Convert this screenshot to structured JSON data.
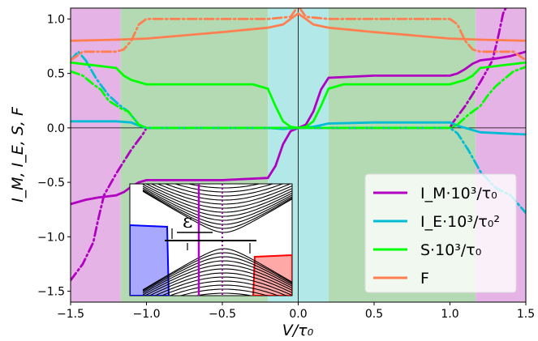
{
  "chart_data": {
    "type": "line",
    "xlabel": "V/τ₀",
    "ylabel": "I_M, I_E, S, F",
    "xlim": [
      -1.5,
      1.5
    ],
    "ylim": [
      -1.6,
      1.1
    ],
    "xticks": [
      -1.5,
      -1.0,
      -0.5,
      0.0,
      0.5,
      1.0,
      1.5
    ],
    "xtick_labels": [
      "−1.5",
      "−1.0",
      "−0.5",
      "0.0",
      "0.5",
      "1.0",
      "1.5"
    ],
    "yticks": [
      -1.5,
      -1.0,
      -0.5,
      0.0,
      0.5,
      1.0
    ],
    "ytick_labels": [
      "−1.5",
      "−1.0",
      "−0.5",
      "0.0",
      "0.5",
      "1.0"
    ],
    "legend_position": "bottom-right",
    "regions": [
      {
        "x0": -1.5,
        "x1": -1.17,
        "color": "#e6b3e6"
      },
      {
        "x0": -1.17,
        "x1": -0.2,
        "color": "#b3dab3"
      },
      {
        "x0": -0.2,
        "x1": 0.2,
        "color": "#b3e8e8"
      },
      {
        "x0": 0.2,
        "x1": 1.17,
        "color": "#b3dab3"
      },
      {
        "x0": 1.17,
        "x1": 1.5,
        "color": "#e6b3e6"
      }
    ],
    "series": [
      {
        "name": "I_M·10³/τ₀",
        "color": "#b000c0",
        "dash": "solid",
        "x": [
          -1.5,
          -1.4,
          -1.32,
          -1.2,
          -1.15,
          -1.1,
          -1.05,
          -1.0,
          -0.5,
          -0.2,
          -0.15,
          -0.1,
          -0.05,
          0.0,
          0.05,
          0.1,
          0.15,
          0.2,
          0.5,
          1.0,
          1.05,
          1.1,
          1.15,
          1.2,
          1.32,
          1.4,
          1.5
        ],
        "y": [
          -0.7,
          -0.66,
          -0.64,
          -0.62,
          -0.59,
          -0.54,
          -0.5,
          -0.48,
          -0.48,
          -0.46,
          -0.35,
          -0.15,
          -0.03,
          0.0,
          0.03,
          0.15,
          0.35,
          0.46,
          0.48,
          0.48,
          0.5,
          0.54,
          0.59,
          0.62,
          0.64,
          0.66,
          0.7
        ]
      },
      {
        "name": "I_M dashed",
        "color": "#b000c0",
        "dash": "dashdot",
        "x": [
          -1.5,
          -1.42,
          -1.35,
          -1.32,
          -1.28,
          -1.2,
          -1.1,
          -1.02,
          -1.0,
          1.0,
          1.02,
          1.1,
          1.2,
          1.28,
          1.32,
          1.35,
          1.42,
          1.5
        ],
        "y": [
          -1.4,
          -1.25,
          -1.05,
          -0.85,
          -0.62,
          -0.42,
          -0.2,
          -0.05,
          0.0,
          0.0,
          0.05,
          0.2,
          0.42,
          0.62,
          0.85,
          1.05,
          1.25,
          1.4
        ]
      },
      {
        "name": "I_E·10³/τ₀²",
        "color": "#00bcd4",
        "dash": "solid",
        "x": [
          -1.5,
          -1.2,
          -1.1,
          -1.05,
          -1.0,
          -0.5,
          -0.2,
          -0.1,
          0.0,
          0.1,
          0.2,
          0.5,
          1.0,
          1.05,
          1.1,
          1.2,
          1.5
        ],
        "y": [
          0.06,
          0.06,
          0.05,
          0.02,
          0.0,
          0.0,
          0.0,
          -0.01,
          0.0,
          0.01,
          0.04,
          0.05,
          0.05,
          0.02,
          0.0,
          -0.04,
          -0.06
        ]
      },
      {
        "name": "I_E dashed",
        "color": "#00bcd4",
        "dash": "dashdot",
        "x": [
          -1.5,
          -1.45,
          -1.4,
          -1.33,
          -1.25,
          -1.17,
          -1.12,
          -1.05,
          -1.0,
          1.0,
          1.05,
          1.12,
          1.2,
          1.3,
          1.4,
          1.45,
          1.5
        ],
        "y": [
          0.62,
          0.7,
          0.62,
          0.45,
          0.3,
          0.2,
          0.15,
          0.03,
          0.0,
          0.0,
          -0.05,
          -0.2,
          -0.4,
          -0.55,
          -0.62,
          -0.7,
          -0.78
        ]
      },
      {
        "name": "S·10³/τ₀",
        "color": "#00ff00",
        "dash": "solid",
        "x": [
          -1.5,
          -1.2,
          -1.15,
          -1.1,
          -1.0,
          -0.5,
          -0.3,
          -0.2,
          -0.15,
          -0.1,
          -0.05,
          0.0,
          0.05,
          0.1,
          0.15,
          0.2,
          0.3,
          0.5,
          1.0,
          1.1,
          1.15,
          1.2,
          1.5
        ],
        "y": [
          0.6,
          0.55,
          0.48,
          0.44,
          0.4,
          0.4,
          0.4,
          0.36,
          0.2,
          0.06,
          0.01,
          0.0,
          0.01,
          0.06,
          0.2,
          0.36,
          0.4,
          0.4,
          0.4,
          0.44,
          0.48,
          0.55,
          0.6
        ]
      },
      {
        "name": "S dashed",
        "color": "#00ff00",
        "dash": "dashdot",
        "x": [
          -1.5,
          -1.42,
          -1.35,
          -1.3,
          -1.25,
          -1.17,
          -1.12,
          -1.05,
          -1.0,
          1.0,
          1.05,
          1.12,
          1.2,
          1.25,
          1.3,
          1.35,
          1.42,
          1.5
        ],
        "y": [
          0.52,
          0.48,
          0.4,
          0.35,
          0.25,
          0.18,
          0.15,
          0.03,
          0.0,
          0.0,
          0.03,
          0.12,
          0.2,
          0.3,
          0.38,
          0.44,
          0.52,
          0.56
        ]
      },
      {
        "name": "F",
        "color": "#ff7f50",
        "dash": "solid",
        "x": [
          -1.5,
          -1.2,
          -1.0,
          -0.5,
          -0.2,
          -0.1,
          -0.05,
          0.0,
          0.05,
          0.1,
          0.2,
          0.5,
          1.0,
          1.2,
          1.5
        ],
        "y": [
          0.8,
          0.81,
          0.82,
          0.88,
          0.92,
          0.95,
          1.0,
          1.05,
          1.0,
          0.95,
          0.92,
          0.88,
          0.82,
          0.81,
          0.8
        ]
      },
      {
        "name": "F dashed",
        "color": "#ff7f50",
        "dash": "dashdot",
        "x": [
          -1.5,
          -1.42,
          -1.3,
          -1.2,
          -1.15,
          -1.1,
          -1.05,
          -1.0,
          -0.5,
          -0.2,
          -0.05,
          0.0,
          0.05,
          0.2,
          0.5,
          1.0,
          1.05,
          1.1,
          1.15,
          1.2,
          1.3,
          1.42,
          1.5
        ],
        "y": [
          0.62,
          0.7,
          0.7,
          0.7,
          0.72,
          0.8,
          0.95,
          1.0,
          1.0,
          1.0,
          1.02,
          1.12,
          1.02,
          1.0,
          1.0,
          1.0,
          0.95,
          0.8,
          0.72,
          0.7,
          0.7,
          0.7,
          0.62
        ]
      }
    ],
    "legend": [
      {
        "label": "I_M·10³/τ₀",
        "color": "#b000c0"
      },
      {
        "label": "I_E·10³/τ₀²",
        "color": "#00bcd4"
      },
      {
        "label": "S·10³/τ₀",
        "color": "#00ff00"
      },
      {
        "label": "F",
        "color": "#ff7f50"
      }
    ],
    "inset": {
      "label": "ε"
    }
  }
}
